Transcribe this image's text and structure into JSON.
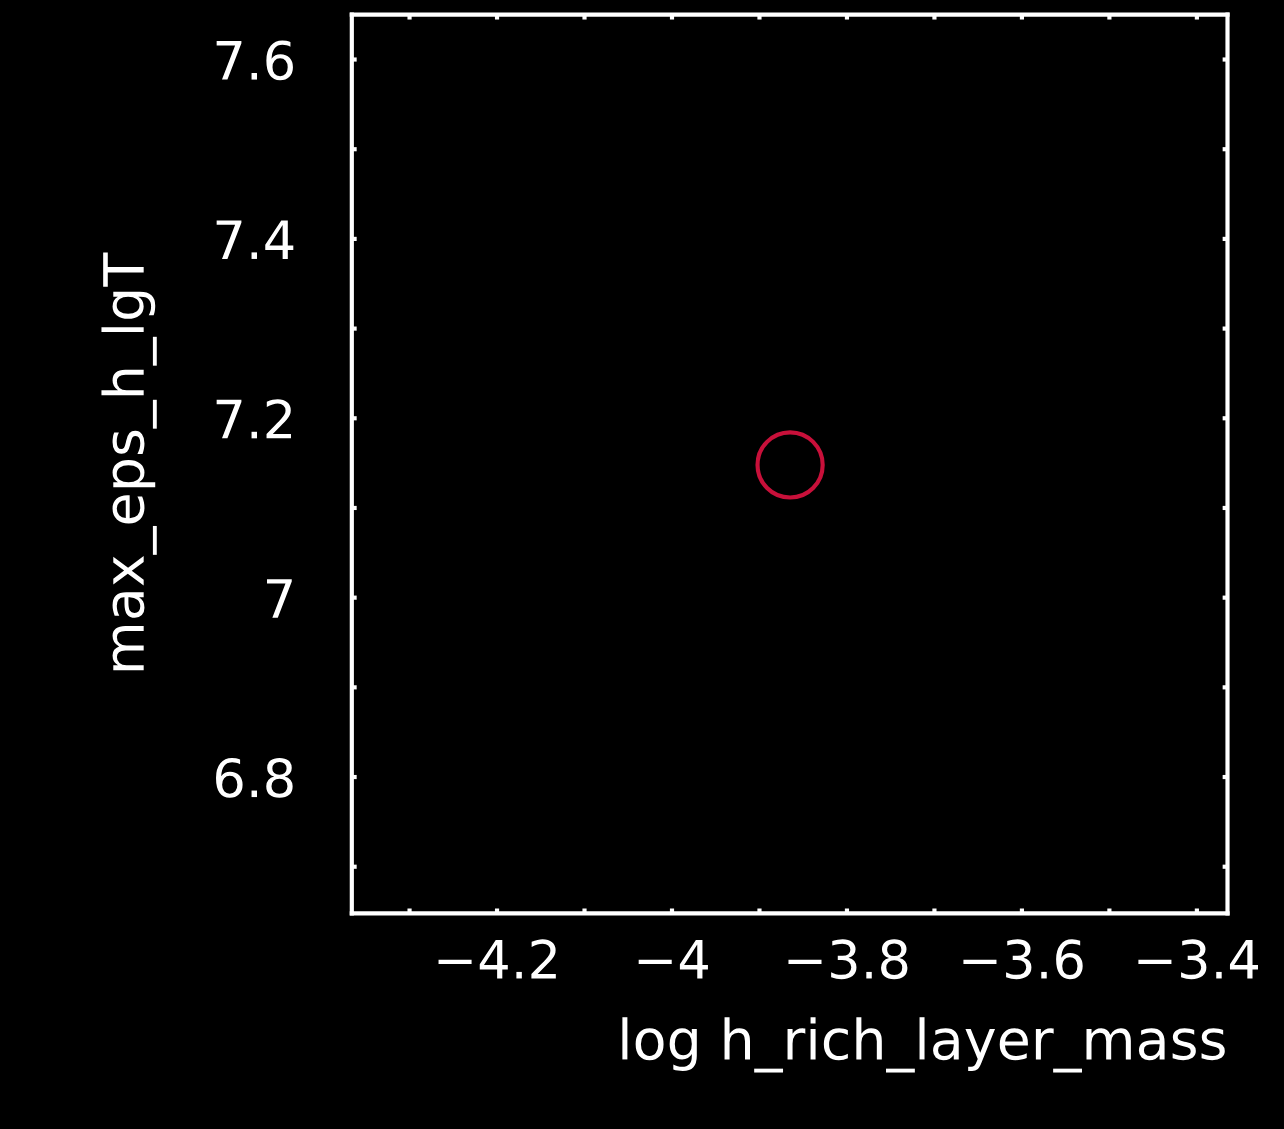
{
  "chart_data": {
    "type": "scatter",
    "xlabel": "log h_rich_layer_mass",
    "ylabel": "max_eps_h_lgT",
    "x": [
      -3.865
    ],
    "values": [
      7.148
    ],
    "color": "#c8103a",
    "marker": "circle",
    "xlim": [
      -4.366,
      -3.365
    ],
    "ylim": [
      6.648,
      7.65
    ],
    "xticks": [
      {
        "value": -4.3,
        "label": null
      },
      {
        "value": -4.2,
        "label": "−4.2"
      },
      {
        "value": -4.1,
        "label": null
      },
      {
        "value": -4,
        "label": "−4"
      },
      {
        "value": -3.9,
        "label": null
      },
      {
        "value": -3.8,
        "label": "−3.8"
      },
      {
        "value": -3.7,
        "label": null
      },
      {
        "value": -3.6,
        "label": "−3.6"
      },
      {
        "value": -3.5,
        "label": null
      },
      {
        "value": -3.4,
        "label": "−3.4"
      }
    ],
    "yticks": [
      {
        "value": 6.7,
        "label": null
      },
      6.8,
      {
        "value": 6.9,
        "label": null
      },
      7,
      {
        "value": 7.1,
        "label": null
      },
      7.2,
      {
        "value": 7.3,
        "label": null
      },
      7.4,
      {
        "value": 7.5,
        "label": null
      },
      7.6
    ],
    "grid": false,
    "legend": false
  }
}
